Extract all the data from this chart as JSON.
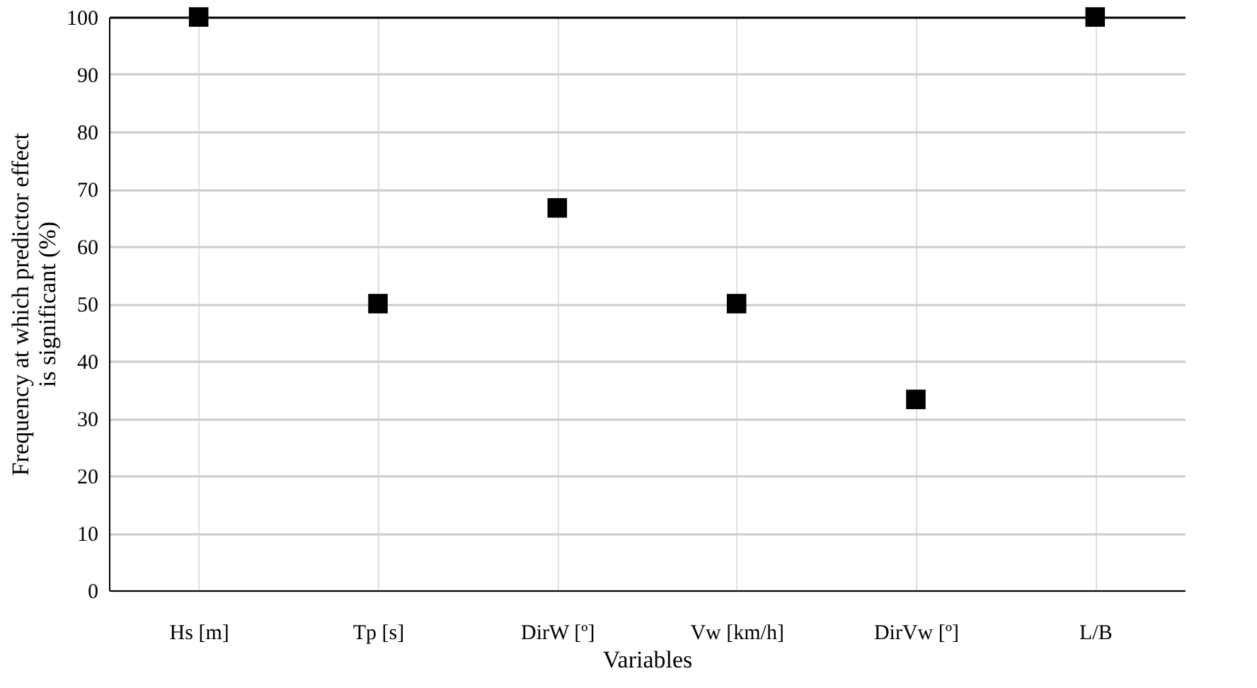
{
  "chart_data": {
    "type": "scatter",
    "xlabel": "Variables",
    "ylabel": "Frequency at which predictor effect\nis significant (%)",
    "categories": [
      "Hs [m]",
      "Tp [s]",
      "DirW [º]",
      "Vw [km/h]",
      "DirVw [º]",
      "L/B"
    ],
    "series": [
      {
        "color": "#000000",
        "values": [
          100,
          50,
          66.7,
          50,
          33.3,
          100
        ]
      }
    ],
    "ylim": [
      0,
      100
    ],
    "yticks": [
      0,
      10,
      20,
      30,
      40,
      50,
      60,
      70,
      80,
      90,
      100
    ],
    "grid": true,
    "marker": "square"
  }
}
